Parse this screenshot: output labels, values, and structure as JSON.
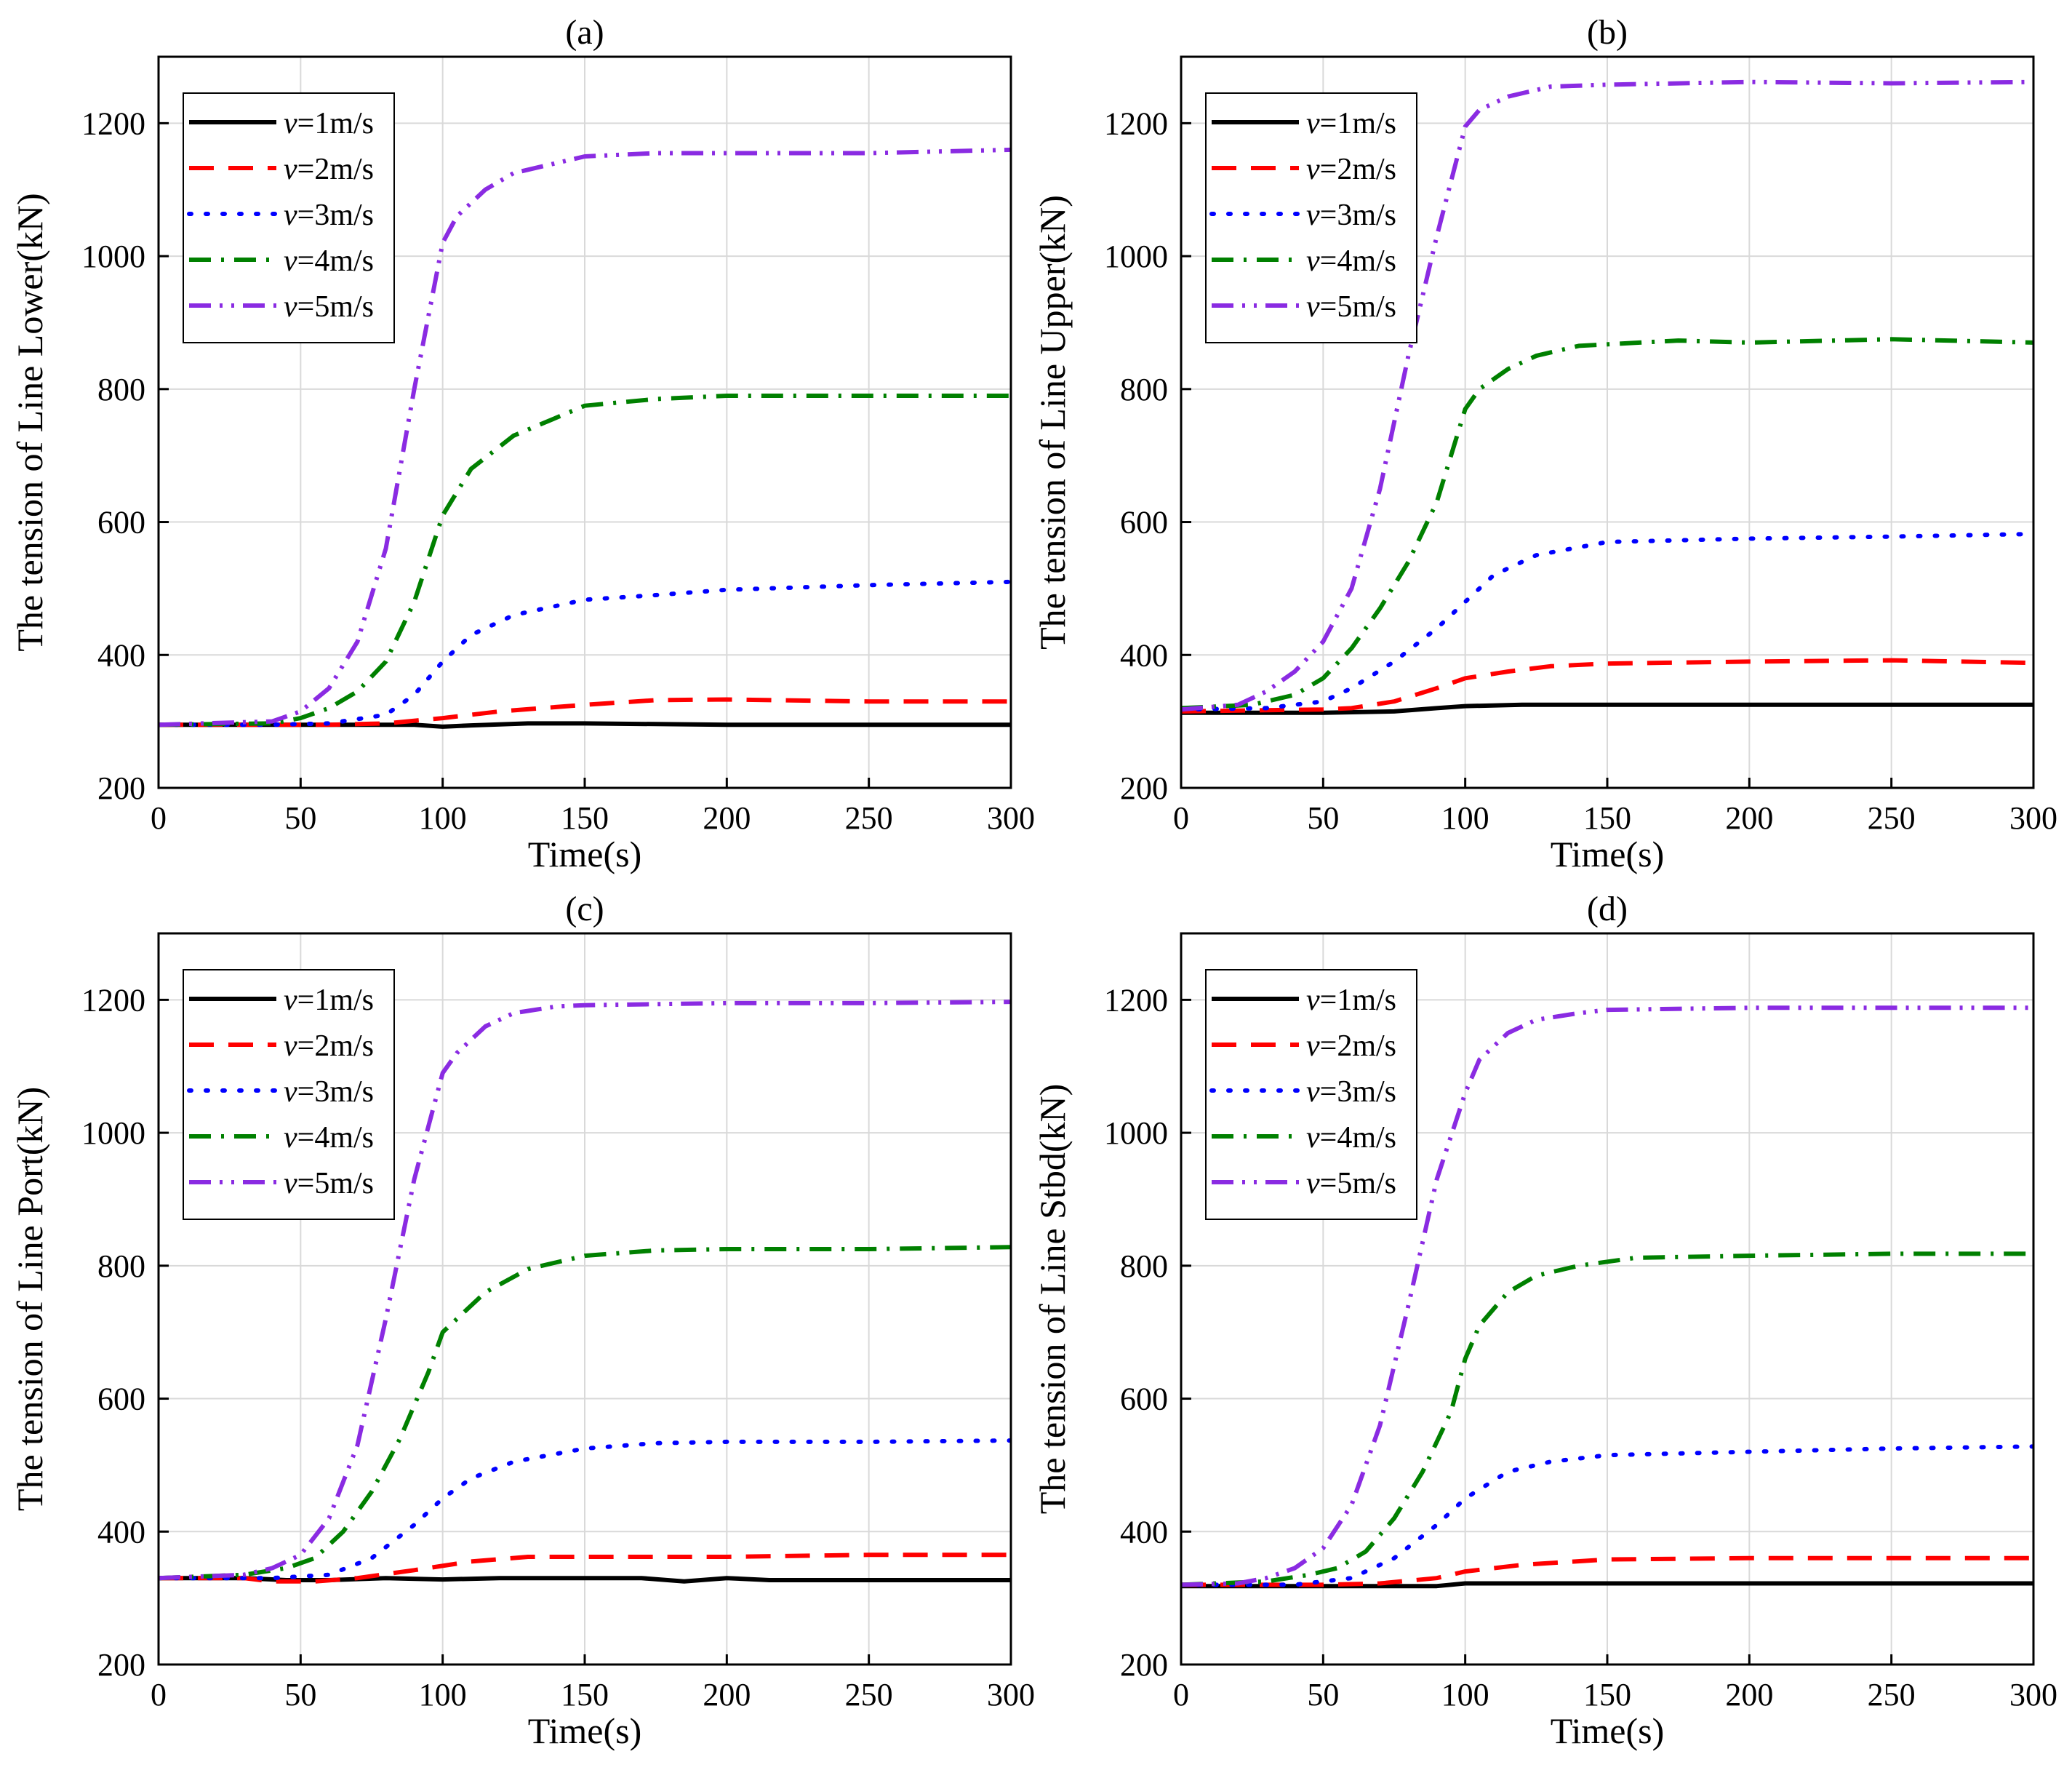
{
  "chart_data": [
    {
      "type": "line",
      "title": "(a)",
      "xlabel": "Time(s)",
      "ylabel": "The tension of Line Lower(kN)",
      "xlim": [
        0,
        300
      ],
      "ylim": [
        200,
        1300
      ],
      "xticks": [
        0,
        50,
        100,
        150,
        200,
        250,
        300
      ],
      "yticks": [
        200,
        400,
        600,
        800,
        1000,
        1200
      ],
      "grid": true,
      "legend_position": "top-left",
      "series": [
        {
          "name": "v=1m/s",
          "name_var": "v",
          "name_rest": "=1m/s",
          "color": "#000000",
          "dash": "solid",
          "x": [
            0,
            50,
            90,
            100,
            110,
            130,
            150,
            175,
            200,
            250,
            300
          ],
          "y": [
            295,
            295,
            295,
            292,
            294,
            297,
            297,
            296,
            295,
            295,
            295
          ]
        },
        {
          "name": "v=2m/s",
          "name_var": "v",
          "name_rest": "=2m/s",
          "color": "#ff0000",
          "dash": "dash",
          "x": [
            0,
            40,
            60,
            80,
            100,
            120,
            150,
            175,
            200,
            250,
            300
          ],
          "y": [
            295,
            295,
            295,
            297,
            305,
            315,
            325,
            332,
            333,
            330,
            330
          ]
        },
        {
          "name": "v=3m/s",
          "name_var": "v",
          "name_rest": "=3m/s",
          "color": "#0000ff",
          "dash": "dot",
          "x": [
            0,
            40,
            60,
            80,
            90,
            100,
            110,
            125,
            150,
            175,
            200,
            250,
            300
          ],
          "y": [
            295,
            295,
            297,
            310,
            340,
            390,
            430,
            460,
            483,
            490,
            498,
            505,
            510
          ]
        },
        {
          "name": "v=4m/s",
          "name_var": "v",
          "name_rest": "=4m/s",
          "color": "#008000",
          "dash": "dashdot",
          "x": [
            0,
            40,
            50,
            60,
            70,
            80,
            90,
            100,
            110,
            125,
            150,
            175,
            200,
            250,
            300
          ],
          "y": [
            295,
            297,
            305,
            320,
            345,
            390,
            480,
            610,
            680,
            730,
            775,
            785,
            790,
            790,
            790
          ]
        },
        {
          "name": "v=5m/s",
          "name_var": "v",
          "name_rest": "=5m/s",
          "color": "#8a2be2",
          "dash": "dashdotdot",
          "x": [
            0,
            40,
            50,
            60,
            70,
            80,
            90,
            100,
            105,
            115,
            125,
            150,
            175,
            200,
            250,
            300
          ],
          "y": [
            295,
            300,
            315,
            350,
            420,
            560,
            800,
            1020,
            1060,
            1100,
            1125,
            1150,
            1155,
            1155,
            1155,
            1160
          ]
        }
      ]
    },
    {
      "type": "line",
      "title": "(b)",
      "xlabel": "Time(s)",
      "ylabel": "The tension of Line Upper(kN)",
      "xlim": [
        0,
        300
      ],
      "ylim": [
        200,
        1300
      ],
      "xticks": [
        0,
        50,
        100,
        150,
        200,
        250,
        300
      ],
      "yticks": [
        200,
        400,
        600,
        800,
        1000,
        1200
      ],
      "grid": true,
      "legend_position": "top-left",
      "series": [
        {
          "name": "v=1m/s",
          "name_var": "v",
          "name_rest": "=1m/s",
          "color": "#000000",
          "dash": "solid",
          "x": [
            0,
            50,
            75,
            90,
            100,
            120,
            150,
            200,
            250,
            300
          ],
          "y": [
            313,
            313,
            315,
            320,
            323,
            325,
            325,
            325,
            325,
            325
          ]
        },
        {
          "name": "v=2m/s",
          "name_var": "v",
          "name_rest": "=2m/s",
          "color": "#ff0000",
          "dash": "dash",
          "x": [
            0,
            50,
            60,
            75,
            90,
            100,
            115,
            130,
            150,
            200,
            250,
            300
          ],
          "y": [
            315,
            318,
            320,
            330,
            350,
            365,
            375,
            383,
            387,
            390,
            392,
            388
          ]
        },
        {
          "name": "v=3m/s",
          "name_var": "v",
          "name_rest": "=3m/s",
          "color": "#0000ff",
          "dash": "dot",
          "x": [
            0,
            30,
            50,
            60,
            75,
            90,
            100,
            110,
            125,
            150,
            200,
            250,
            300
          ],
          "y": [
            318,
            320,
            330,
            350,
            390,
            440,
            480,
            520,
            550,
            570,
            575,
            578,
            582
          ]
        },
        {
          "name": "v=4m/s",
          "name_var": "v",
          "name_rest": "=4m/s",
          "color": "#008000",
          "dash": "dashdot",
          "x": [
            0,
            25,
            40,
            50,
            60,
            70,
            80,
            90,
            100,
            105,
            115,
            125,
            140,
            175,
            200,
            250,
            300
          ],
          "y": [
            320,
            325,
            340,
            365,
            410,
            470,
            540,
            630,
            770,
            800,
            830,
            850,
            865,
            873,
            870,
            875,
            870
          ]
        },
        {
          "name": "v=5m/s",
          "name_var": "v",
          "name_rest": "=5m/s",
          "color": "#8a2be2",
          "dash": "dashdotdot",
          "x": [
            0,
            20,
            30,
            40,
            50,
            60,
            70,
            80,
            90,
            100,
            105,
            115,
            130,
            150,
            200,
            250,
            300
          ],
          "y": [
            318,
            325,
            345,
            375,
            420,
            500,
            650,
            850,
            1030,
            1195,
            1220,
            1240,
            1255,
            1258,
            1262,
            1260,
            1262
          ]
        }
      ]
    },
    {
      "type": "line",
      "title": "(c)",
      "xlabel": "Time(s)",
      "ylabel": "The tension of Line Port(kN)",
      "xlim": [
        0,
        300
      ],
      "ylim": [
        200,
        1300
      ],
      "xticks": [
        0,
        50,
        100,
        150,
        200,
        250,
        300
      ],
      "yticks": [
        200,
        400,
        600,
        800,
        1000,
        1200
      ],
      "grid": true,
      "legend_position": "top-left",
      "series": [
        {
          "name": "v=1m/s",
          "name_var": "v",
          "name_rest": "=1m/s",
          "color": "#000000",
          "dash": "solid",
          "x": [
            0,
            30,
            45,
            60,
            80,
            100,
            120,
            150,
            170,
            185,
            200,
            215,
            250,
            300
          ],
          "y": [
            330,
            330,
            327,
            327,
            330,
            328,
            330,
            330,
            330,
            325,
            330,
            327,
            327,
            327
          ]
        },
        {
          "name": "v=2m/s",
          "name_var": "v",
          "name_rest": "=2m/s",
          "color": "#ff0000",
          "dash": "dash",
          "x": [
            0,
            30,
            40,
            55,
            70,
            90,
            110,
            130,
            150,
            200,
            250,
            300
          ],
          "y": [
            330,
            330,
            325,
            325,
            330,
            342,
            355,
            362,
            362,
            362,
            365,
            365
          ]
        },
        {
          "name": "v=3m/s",
          "name_var": "v",
          "name_rest": "=3m/s",
          "color": "#0000ff",
          "dash": "dot",
          "x": [
            0,
            40,
            60,
            75,
            90,
            100,
            110,
            125,
            150,
            175,
            200,
            250,
            300
          ],
          "y": [
            330,
            330,
            335,
            360,
            410,
            450,
            480,
            505,
            525,
            533,
            535,
            535,
            537
          ]
        },
        {
          "name": "v=4m/s",
          "name_var": "v",
          "name_rest": "=4m/s",
          "color": "#008000",
          "dash": "dashdot",
          "x": [
            0,
            30,
            45,
            55,
            65,
            75,
            85,
            95,
            100,
            105,
            115,
            130,
            150,
            175,
            200,
            250,
            300
          ],
          "y": [
            330,
            335,
            345,
            360,
            400,
            460,
            540,
            640,
            700,
            720,
            760,
            795,
            815,
            823,
            825,
            825,
            828
          ]
        },
        {
          "name": "v=5m/s",
          "name_var": "v",
          "name_rest": "=5m/s",
          "color": "#8a2be2",
          "dash": "dashdotdot",
          "x": [
            0,
            30,
            40,
            50,
            60,
            70,
            80,
            90,
            100,
            105,
            115,
            125,
            140,
            150,
            200,
            250,
            300
          ],
          "y": [
            330,
            335,
            345,
            365,
            420,
            530,
            720,
            930,
            1090,
            1120,
            1160,
            1180,
            1190,
            1192,
            1195,
            1195,
            1197
          ]
        }
      ]
    },
    {
      "type": "line",
      "title": "(d)",
      "xlabel": "Time(s)",
      "ylabel": "The tension of Line Stbd(kN)",
      "xlim": [
        0,
        300
      ],
      "ylim": [
        200,
        1300
      ],
      "xticks": [
        0,
        50,
        100,
        150,
        200,
        250,
        300
      ],
      "yticks": [
        200,
        400,
        600,
        800,
        1000,
        1200
      ],
      "grid": true,
      "legend_position": "top-left",
      "series": [
        {
          "name": "v=1m/s",
          "name_var": "v",
          "name_rest": "=1m/s",
          "color": "#000000",
          "dash": "solid",
          "x": [
            0,
            50,
            90,
            100,
            150,
            200,
            250,
            300
          ],
          "y": [
            318,
            318,
            318,
            322,
            322,
            322,
            322,
            322
          ]
        },
        {
          "name": "v=2m/s",
          "name_var": "v",
          "name_rest": "=2m/s",
          "color": "#ff0000",
          "dash": "dash",
          "x": [
            0,
            50,
            70,
            90,
            100,
            120,
            150,
            200,
            250,
            300
          ],
          "y": [
            320,
            320,
            322,
            330,
            340,
            350,
            358,
            360,
            360,
            360
          ]
        },
        {
          "name": "v=3m/s",
          "name_var": "v",
          "name_rest": "=3m/s",
          "color": "#0000ff",
          "dash": "dot",
          "x": [
            0,
            40,
            60,
            75,
            90,
            100,
            115,
            130,
            150,
            200,
            250,
            300
          ],
          "y": [
            320,
            320,
            330,
            360,
            410,
            450,
            490,
            505,
            515,
            520,
            525,
            528
          ]
        },
        {
          "name": "v=4m/s",
          "name_var": "v",
          "name_rest": "=4m/s",
          "color": "#008000",
          "dash": "dashdot",
          "x": [
            0,
            30,
            45,
            55,
            65,
            75,
            85,
            95,
            100,
            105,
            115,
            125,
            140,
            160,
            200,
            250,
            300
          ],
          "y": [
            320,
            325,
            335,
            345,
            370,
            420,
            490,
            580,
            660,
            710,
            760,
            785,
            800,
            812,
            815,
            818,
            818
          ]
        },
        {
          "name": "v=5m/s",
          "name_var": "v",
          "name_rest": "=5m/s",
          "color": "#8a2be2",
          "dash": "dashdotdot",
          "x": [
            0,
            20,
            30,
            40,
            50,
            60,
            70,
            80,
            90,
            100,
            105,
            115,
            125,
            140,
            150,
            200,
            250,
            300
          ],
          "y": [
            320,
            322,
            330,
            345,
            375,
            440,
            560,
            740,
            930,
            1060,
            1110,
            1150,
            1170,
            1180,
            1185,
            1188,
            1188,
            1188
          ]
        }
      ]
    }
  ]
}
